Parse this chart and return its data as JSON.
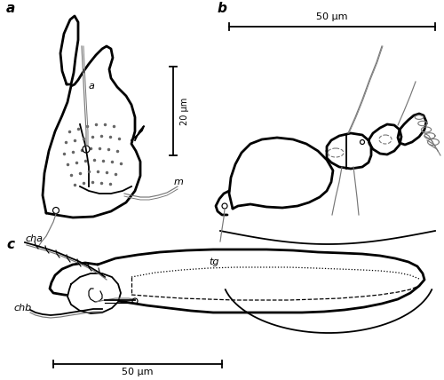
{
  "bg_color": "#ffffff",
  "line_color": "#000000",
  "light_line_color": "#777777",
  "dot_color": "#666666",
  "label_a": "a",
  "label_b": "b",
  "label_c": "c",
  "label_aa": "a",
  "label_m": "m",
  "label_cha": "cha",
  "label_chb": "chb",
  "label_tg": "tg",
  "scale_a": "20 μm",
  "scale_b": "50 μm",
  "scale_c": "50 μm",
  "fig_width": 5.0,
  "fig_height": 4.28,
  "dpi": 100
}
